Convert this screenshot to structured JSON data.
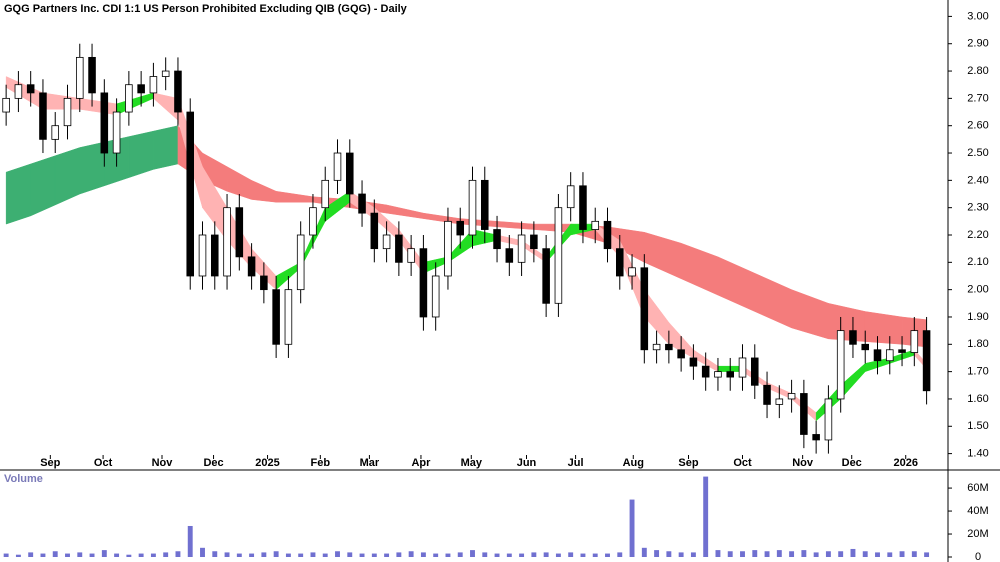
{
  "chart_data": [
    {
      "type": "candlestick",
      "title": "GQG Partners Inc. CDI 1:1 US Person Prohibited Excluding QIB (GQG) - Daily",
      "open": [
        2.65,
        2.7,
        2.75,
        2.72,
        2.55,
        2.6,
        2.7,
        2.85,
        2.72,
        2.5,
        2.65,
        2.75,
        2.72,
        2.78,
        2.8,
        2.65,
        2.05,
        2.2,
        2.05,
        2.3,
        2.12,
        2.05,
        2.0,
        1.8,
        2.0,
        2.2,
        2.3,
        2.4,
        2.5,
        2.35,
        2.28,
        2.15,
        2.2,
        2.1,
        2.15,
        1.9,
        2.05,
        2.25,
        2.2,
        2.4,
        2.22,
        2.15,
        2.1,
        2.2,
        2.15,
        1.95,
        2.3,
        2.38,
        2.22,
        2.25,
        2.15,
        2.05,
        2.08,
        1.78,
        1.8,
        1.78,
        1.75,
        1.72,
        1.68,
        1.7,
        1.68,
        1.75,
        1.65,
        1.58,
        1.6,
        1.62,
        1.47,
        1.45,
        1.6,
        1.85,
        1.8,
        1.78,
        1.74,
        1.78,
        1.77,
        1.85
      ],
      "high": [
        2.75,
        2.8,
        2.8,
        2.77,
        2.65,
        2.75,
        2.9,
        2.9,
        2.77,
        2.7,
        2.8,
        2.8,
        2.83,
        2.85,
        2.85,
        2.7,
        2.25,
        2.25,
        2.35,
        2.35,
        2.17,
        2.1,
        2.05,
        2.05,
        2.25,
        2.35,
        2.45,
        2.55,
        2.55,
        2.4,
        2.33,
        2.25,
        2.25,
        2.2,
        2.2,
        2.1,
        2.3,
        2.3,
        2.45,
        2.45,
        2.27,
        2.2,
        2.25,
        2.25,
        2.2,
        2.35,
        2.43,
        2.43,
        2.3,
        2.3,
        2.2,
        2.13,
        2.13,
        1.85,
        1.85,
        1.83,
        1.8,
        1.77,
        1.75,
        1.75,
        1.8,
        1.8,
        1.7,
        1.65,
        1.67,
        1.67,
        1.52,
        1.65,
        1.9,
        1.9,
        1.85,
        1.83,
        1.83,
        1.83,
        1.9,
        1.9
      ],
      "low": [
        2.6,
        2.65,
        2.67,
        2.5,
        2.5,
        2.55,
        2.65,
        2.67,
        2.45,
        2.45,
        2.6,
        2.67,
        2.67,
        2.73,
        2.6,
        2.0,
        2.0,
        2.0,
        2.0,
        2.07,
        2.0,
        1.95,
        1.75,
        1.75,
        1.95,
        2.15,
        2.25,
        2.35,
        2.3,
        2.23,
        2.1,
        2.1,
        2.05,
        2.05,
        1.85,
        1.85,
        2.0,
        2.15,
        2.15,
        2.17,
        2.1,
        2.05,
        2.05,
        2.1,
        1.9,
        1.9,
        2.25,
        2.17,
        2.17,
        2.1,
        2.0,
        2.0,
        1.73,
        1.73,
        1.73,
        1.7,
        1.67,
        1.63,
        1.63,
        1.63,
        1.63,
        1.6,
        1.53,
        1.53,
        1.55,
        1.42,
        1.4,
        1.4,
        1.55,
        1.75,
        1.73,
        1.69,
        1.69,
        1.72,
        1.72,
        1.58
      ],
      "close": [
        2.7,
        2.75,
        2.72,
        2.55,
        2.6,
        2.7,
        2.85,
        2.72,
        2.5,
        2.65,
        2.75,
        2.72,
        2.78,
        2.8,
        2.65,
        2.05,
        2.2,
        2.05,
        2.3,
        2.12,
        2.05,
        2.0,
        1.8,
        2.0,
        2.2,
        2.3,
        2.4,
        2.5,
        2.35,
        2.28,
        2.15,
        2.2,
        2.1,
        2.15,
        1.9,
        2.05,
        2.25,
        2.2,
        2.4,
        2.22,
        2.15,
        2.1,
        2.2,
        2.15,
        1.95,
        2.3,
        2.38,
        2.22,
        2.25,
        2.15,
        2.05,
        2.08,
        1.78,
        1.8,
        1.78,
        1.75,
        1.72,
        1.68,
        1.7,
        1.68,
        1.75,
        1.65,
        1.58,
        1.6,
        1.62,
        1.47,
        1.45,
        1.6,
        1.85,
        1.8,
        1.78,
        1.74,
        1.78,
        1.77,
        1.85,
        1.63
      ],
      "up_color": "#ffffff",
      "down_color": "#000000",
      "bands": [
        {
          "x": [
            0,
            2,
            4,
            6,
            8,
            10,
            12,
            14,
            16,
            18,
            20,
            22,
            25,
            28,
            31,
            34,
            37,
            40,
            43,
            46,
            49,
            52,
            55,
            58,
            61,
            64,
            67,
            70,
            73,
            75
          ],
          "upper": [
            2.43,
            2.46,
            2.49,
            2.52,
            2.54,
            2.56,
            2.58,
            2.6,
            2.5,
            2.45,
            2.4,
            2.36,
            2.34,
            2.33,
            2.31,
            2.28,
            2.26,
            2.25,
            2.24,
            2.24,
            2.23,
            2.21,
            2.17,
            2.12,
            2.06,
            2.0,
            1.95,
            1.92,
            1.9,
            1.89
          ],
          "lower": [
            2.24,
            2.27,
            2.31,
            2.35,
            2.38,
            2.41,
            2.44,
            2.46,
            2.4,
            2.36,
            2.33,
            2.32,
            2.32,
            2.3,
            2.28,
            2.26,
            2.24,
            2.23,
            2.22,
            2.21,
            2.17,
            2.1,
            2.04,
            1.98,
            1.92,
            1.86,
            1.82,
            1.81,
            1.8,
            1.79
          ],
          "up_color": "#3daf72",
          "down_color": "#f47c7c"
        },
        {
          "x": [
            0,
            3,
            6,
            9,
            12,
            14,
            16,
            18,
            20,
            22,
            24,
            26,
            28,
            30,
            32,
            34,
            36,
            38,
            40,
            42,
            44,
            46,
            48,
            50,
            52,
            54,
            56,
            58,
            60,
            62,
            64,
            66,
            68,
            70,
            72,
            74,
            75
          ],
          "upper": [
            2.78,
            2.72,
            2.7,
            2.68,
            2.72,
            2.7,
            2.45,
            2.3,
            2.15,
            2.05,
            2.1,
            2.3,
            2.36,
            2.3,
            2.22,
            2.1,
            2.12,
            2.22,
            2.2,
            2.18,
            2.12,
            2.24,
            2.24,
            2.18,
            2.0,
            1.88,
            1.78,
            1.72,
            1.72,
            1.66,
            1.62,
            1.55,
            1.65,
            1.73,
            1.75,
            1.78,
            1.73
          ],
          "lower": [
            2.74,
            2.66,
            2.66,
            2.64,
            2.7,
            2.62,
            2.3,
            2.18,
            2.08,
            2.0,
            2.08,
            2.25,
            2.32,
            2.26,
            2.18,
            2.06,
            2.1,
            2.16,
            2.18,
            2.16,
            2.1,
            2.2,
            2.22,
            2.12,
            1.9,
            1.8,
            1.75,
            1.7,
            1.7,
            1.64,
            1.6,
            1.52,
            1.6,
            1.7,
            1.73,
            1.76,
            1.71
          ],
          "up_color": "#22dd22",
          "down_color": "#ffb3b3"
        }
      ],
      "xlim": [
        -0.5,
        76.5
      ],
      "xticks": [
        {
          "value": 3.6,
          "label": "Sep"
        },
        {
          "value": 7.9,
          "label": "Oct"
        },
        {
          "value": 12.7,
          "label": "Nov"
        },
        {
          "value": 16.9,
          "label": "Dec"
        },
        {
          "value": 21.3,
          "label": "2025"
        },
        {
          "value": 25.6,
          "label": "Feb"
        },
        {
          "value": 29.6,
          "label": "Mar"
        },
        {
          "value": 33.8,
          "label": "Apr"
        },
        {
          "value": 37.9,
          "label": "May"
        },
        {
          "value": 42.4,
          "label": "Jun"
        },
        {
          "value": 46.4,
          "label": "Jul"
        },
        {
          "value": 51.1,
          "label": "Aug"
        },
        {
          "value": 55.6,
          "label": "Sep"
        },
        {
          "value": 60,
          "label": "Oct"
        },
        {
          "value": 64.9,
          "label": "Nov"
        },
        {
          "value": 68.9,
          "label": "Dec"
        },
        {
          "value": 73.3,
          "label": "2026"
        }
      ],
      "ylim": [
        1.34,
        3.06
      ],
      "yticks": [
        {
          "value": 1.4,
          "label": "1.40"
        },
        {
          "value": 1.5,
          "label": "1.50"
        },
        {
          "value": 1.6,
          "label": "1.60"
        },
        {
          "value": 1.7,
          "label": "1.70"
        },
        {
          "value": 1.8,
          "label": "1.80"
        },
        {
          "value": 1.9,
          "label": "1.90"
        },
        {
          "value": 2.0,
          "label": "2.00"
        },
        {
          "value": 2.1,
          "label": "2.10"
        },
        {
          "value": 2.2,
          "label": "2.20"
        },
        {
          "value": 2.3,
          "label": "2.30"
        },
        {
          "value": 2.4,
          "label": "2.40"
        },
        {
          "value": 2.5,
          "label": "2.50"
        },
        {
          "value": 2.6,
          "label": "2.60"
        },
        {
          "value": 2.7,
          "label": "2.70"
        },
        {
          "value": 2.8,
          "label": "2.80"
        },
        {
          "value": 2.9,
          "label": "2.90"
        },
        {
          "value": 3.0,
          "label": "3.00"
        }
      ]
    },
    {
      "type": "bar",
      "title": "Volume",
      "values": [
        3,
        2,
        4,
        3,
        5,
        3,
        4,
        3,
        6,
        3,
        2,
        3,
        3,
        4,
        5,
        27,
        8,
        5,
        4,
        3,
        3,
        4,
        5,
        3,
        3,
        4,
        3,
        5,
        4,
        3,
        3,
        3,
        4,
        5,
        4,
        3,
        3,
        4,
        6,
        4,
        3,
        3,
        3,
        4,
        4,
        3,
        4,
        3,
        3,
        3,
        4,
        50,
        8,
        6,
        5,
        4,
        4,
        70,
        6,
        5,
        5,
        6,
        5,
        6,
        5,
        6,
        4,
        5,
        5,
        7,
        5,
        4,
        4,
        5,
        5,
        4
      ],
      "color": "#7070d0",
      "xlim": [
        -0.5,
        76.5
      ],
      "ylim": [
        0,
        74
      ],
      "yticks": [
        0,
        {
          "value": 20,
          "label": "20M"
        },
        {
          "value": 40,
          "label": "40M"
        },
        {
          "value": 60,
          "label": "60M"
        }
      ]
    }
  ]
}
